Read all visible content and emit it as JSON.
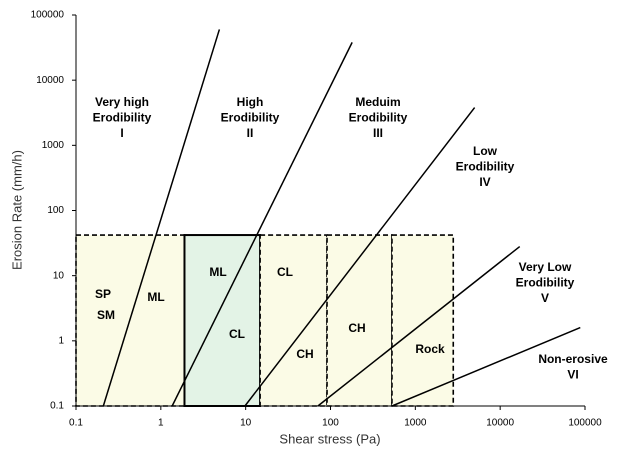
{
  "chart_data": {
    "type": "line",
    "x_label": "Shear stress (Pa)",
    "y_label": "Erosion Rate (mm/h)",
    "log_x": true,
    "log_y": true,
    "xlim": [
      0.1,
      100000
    ],
    "xticks": [
      0.1,
      1,
      10,
      100,
      1000,
      10000,
      100000
    ],
    "ylim": [
      0.1,
      100000
    ],
    "yticks": [
      0.1,
      1,
      10,
      100,
      1000,
      10000,
      100000
    ],
    "series": [
      {
        "x": [
          0.21,
          4.9
        ],
        "y": [
          0.1,
          60000
        ],
        "color": "#000000"
      },
      {
        "x": [
          1.36,
          180
        ],
        "y": [
          0.1,
          38000
        ],
        "color": "#000000"
      },
      {
        "x": [
          9.8,
          5000
        ],
        "y": [
          0.1,
          3800
        ],
        "color": "#000000"
      },
      {
        "x": [
          71,
          17000
        ],
        "y": [
          0.1,
          28
        ],
        "color": "#000000"
      },
      {
        "x": [
          530,
          88000
        ],
        "y": [
          0.1,
          1.6
        ],
        "color": "#000000"
      }
    ],
    "zones": [
      {
        "x0": 0.1,
        "x1": 1.9,
        "y0": 0.1,
        "y1": 42,
        "fill": "#fbfbe6",
        "border": "dashed",
        "labels": [
          "SP",
          "SM",
          "ML"
        ]
      },
      {
        "x0": 1.9,
        "x1": 14.8,
        "y0": 0.1,
        "y1": 42,
        "fill": "#e3f3e6",
        "border": "solid",
        "labels": [
          "ML",
          "CL"
        ]
      },
      {
        "x0": 14.8,
        "x1": 91,
        "y0": 0.1,
        "y1": 42,
        "fill": "#fbfbe6",
        "border": "dashed",
        "labels": [
          "CL",
          "CH"
        ]
      },
      {
        "x0": 91,
        "x1": 530,
        "y0": 0.1,
        "y1": 42,
        "fill": "#fbfbe6",
        "border": "dashed",
        "labels": [
          "CH"
        ]
      },
      {
        "x0": 530,
        "x1": 2800,
        "y0": 0.1,
        "y1": 42,
        "fill": "#fbfbe6",
        "border": "dashed",
        "labels": [
          "Rock"
        ]
      }
    ],
    "regions": [
      [
        "Very high",
        "Erodibility",
        "I"
      ],
      [
        "High",
        "Erodibility",
        "II"
      ],
      [
        "Meduim",
        "Erodibility",
        "III"
      ],
      [
        "Low",
        "Erodibility",
        "IV"
      ],
      [
        "Very Low",
        "Erodibility",
        "V"
      ],
      [
        "Non-erosive",
        "VI"
      ]
    ]
  }
}
